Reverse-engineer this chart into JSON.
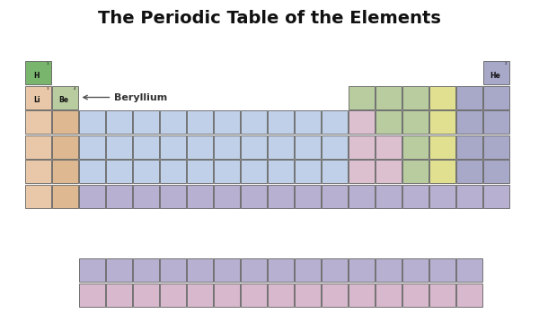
{
  "title": "The Periodic Table of the Elements",
  "title_fontsize": 14,
  "bg_color": "#ffffff",
  "annotation_text": "Beryllium",
  "colors": {
    "green": "#7ab56e",
    "peach": "#e8c8a8",
    "orange_light": "#ddb890",
    "blue_light": "#c0d0e8",
    "green_light": "#b8ccA0",
    "pink_light": "#ddc0d0",
    "yellow_light": "#e0e090",
    "purple_light": "#a8a8c8",
    "purple_medium": "#b8b0d0",
    "pink_bottom": "#d8b8cc",
    "border": "#606060"
  }
}
